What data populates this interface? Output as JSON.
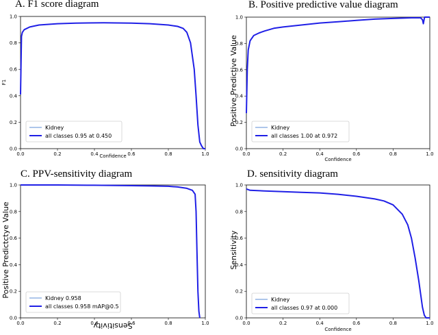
{
  "chart_data": [
    {
      "type": "line",
      "panel_title": "A. F1 score diagram",
      "xlabel": "Confidence",
      "ylabel": "F1",
      "xlim": [
        0,
        1
      ],
      "ylim": [
        0,
        1
      ],
      "xticks": [
        "0.0",
        "0.2",
        "0.4",
        "0.6",
        "0.8",
        "1.0"
      ],
      "yticks": [
        "0.0",
        "0.2",
        "0.4",
        "0.6",
        "0.8",
        "1.0"
      ],
      "legend_position": "lower-left",
      "series": [
        {
          "name": "Kidney",
          "color": "#5b8ed6",
          "width": 1,
          "x": [
            0.0,
            0.005,
            0.01,
            0.02,
            0.05,
            0.1,
            0.2,
            0.3,
            0.45,
            0.6,
            0.7,
            0.8,
            0.85,
            0.88,
            0.9,
            0.92,
            0.94,
            0.95,
            0.96,
            0.97,
            0.98,
            0.99,
            1.0
          ],
          "y": [
            0.41,
            0.85,
            0.88,
            0.9,
            0.92,
            0.935,
            0.945,
            0.95,
            0.952,
            0.95,
            0.945,
            0.935,
            0.925,
            0.91,
            0.88,
            0.8,
            0.6,
            0.4,
            0.18,
            0.05,
            0.02,
            0.0,
            0.0
          ]
        },
        {
          "name": "all classes 0.95 at 0.450",
          "color": "#1f1fe6",
          "width": 2,
          "x": [
            0.0,
            0.005,
            0.01,
            0.02,
            0.05,
            0.1,
            0.2,
            0.3,
            0.45,
            0.6,
            0.7,
            0.8,
            0.85,
            0.88,
            0.9,
            0.92,
            0.94,
            0.95,
            0.96,
            0.97,
            0.98,
            0.99,
            1.0
          ],
          "y": [
            0.41,
            0.85,
            0.88,
            0.9,
            0.92,
            0.935,
            0.945,
            0.95,
            0.952,
            0.95,
            0.945,
            0.935,
            0.925,
            0.91,
            0.88,
            0.8,
            0.6,
            0.4,
            0.18,
            0.05,
            0.02,
            0.0,
            0.0
          ]
        }
      ]
    },
    {
      "type": "line",
      "panel_title": "B. Positive predictive value diagram",
      "xlabel": "Confidence",
      "ylabel": "Positive Predictive Value",
      "xlim": [
        0,
        1
      ],
      "ylim": [
        0,
        1
      ],
      "xticks": [
        "0.0",
        "0.2",
        "0.4",
        "0.6",
        "0.8",
        "1.0"
      ],
      "yticks": [
        "0.0",
        "0.2",
        "0.4",
        "0.6",
        "0.8",
        "1.0"
      ],
      "legend_position": "lower-left",
      "series": [
        {
          "name": "Kidney",
          "color": "#5b8ed6",
          "width": 1,
          "x": [
            0.0,
            0.005,
            0.01,
            0.02,
            0.04,
            0.07,
            0.1,
            0.15,
            0.2,
            0.3,
            0.4,
            0.5,
            0.6,
            0.7,
            0.8,
            0.9,
            0.95,
            0.96,
            0.965,
            0.97,
            0.972,
            1.0
          ],
          "y": [
            0.27,
            0.6,
            0.75,
            0.82,
            0.86,
            0.88,
            0.895,
            0.915,
            0.925,
            0.94,
            0.955,
            0.965,
            0.975,
            0.985,
            0.99,
            0.995,
            0.995,
            0.98,
            0.95,
            0.99,
            1.0,
            1.0
          ]
        },
        {
          "name": "all classes 1.00 at 0.972",
          "color": "#1f1fe6",
          "width": 2,
          "x": [
            0.0,
            0.005,
            0.01,
            0.02,
            0.04,
            0.07,
            0.1,
            0.15,
            0.2,
            0.3,
            0.4,
            0.5,
            0.6,
            0.7,
            0.8,
            0.9,
            0.95,
            0.96,
            0.965,
            0.97,
            0.972,
            1.0
          ],
          "y": [
            0.27,
            0.6,
            0.75,
            0.82,
            0.86,
            0.88,
            0.895,
            0.915,
            0.925,
            0.94,
            0.955,
            0.965,
            0.975,
            0.985,
            0.99,
            0.995,
            0.995,
            0.98,
            0.95,
            0.99,
            1.0,
            1.0
          ]
        }
      ]
    },
    {
      "type": "line",
      "panel_title": "C. PPV-sensitivity diagram",
      "xlabel": "Sensitivity",
      "xlabel_rotated": true,
      "ylabel": "Positive Predictctye Value",
      "xlim": [
        0,
        1
      ],
      "ylim": [
        0,
        1
      ],
      "xticks": [
        "0.0",
        "0.2",
        "0.4",
        "0.6",
        "0.8",
        "1.0"
      ],
      "yticks": [
        "0.0",
        "0.2",
        "0.4",
        "0.6",
        "0.8",
        "1.0"
      ],
      "legend_position": "lower-left",
      "series": [
        {
          "name": "Kidney 0.958",
          "color": "#5b8ed6",
          "width": 1,
          "x": [
            0.0,
            0.2,
            0.4,
            0.6,
            0.7,
            0.8,
            0.85,
            0.9,
            0.93,
            0.945,
            0.95,
            0.955,
            0.96,
            0.965,
            0.97
          ],
          "y": [
            1.0,
            1.0,
            0.998,
            0.995,
            0.993,
            0.99,
            0.985,
            0.975,
            0.96,
            0.93,
            0.8,
            0.5,
            0.2,
            0.05,
            0.0
          ]
        },
        {
          "name": "all classes 0.958 mAP@0.5",
          "color": "#1f1fe6",
          "width": 2,
          "x": [
            0.0,
            0.2,
            0.4,
            0.6,
            0.7,
            0.8,
            0.85,
            0.9,
            0.93,
            0.945,
            0.95,
            0.955,
            0.96,
            0.965,
            0.97
          ],
          "y": [
            1.0,
            1.0,
            0.998,
            0.995,
            0.993,
            0.99,
            0.985,
            0.975,
            0.96,
            0.93,
            0.8,
            0.5,
            0.2,
            0.05,
            0.0
          ]
        }
      ]
    },
    {
      "type": "line",
      "panel_title": "D. sensitivity diagram",
      "xlabel": "Confidence",
      "ylabel": "Sensitivity",
      "xlim": [
        0,
        1
      ],
      "ylim": [
        0,
        1
      ],
      "xticks": [
        "0.0",
        "0.2",
        "0.4",
        "0.6",
        "0.8",
        "1.0"
      ],
      "yticks": [
        "0.0",
        "0.2",
        "0.4",
        "0.6",
        "0.8",
        "1.0"
      ],
      "legend_position": "lower-left",
      "series": [
        {
          "name": "Kidney",
          "color": "#5b8ed6",
          "width": 1,
          "x": [
            0.0,
            0.02,
            0.1,
            0.2,
            0.3,
            0.4,
            0.5,
            0.6,
            0.7,
            0.75,
            0.8,
            0.85,
            0.88,
            0.9,
            0.92,
            0.94,
            0.95,
            0.96,
            0.97,
            0.98,
            1.0
          ],
          "y": [
            0.97,
            0.96,
            0.955,
            0.95,
            0.945,
            0.94,
            0.93,
            0.915,
            0.895,
            0.88,
            0.85,
            0.78,
            0.7,
            0.6,
            0.45,
            0.28,
            0.18,
            0.08,
            0.02,
            0.0,
            0.0
          ]
        },
        {
          "name": "all classes 0.97 at 0.000",
          "color": "#1f1fe6",
          "width": 2,
          "x": [
            0.0,
            0.02,
            0.1,
            0.2,
            0.3,
            0.4,
            0.5,
            0.6,
            0.7,
            0.75,
            0.8,
            0.85,
            0.88,
            0.9,
            0.92,
            0.94,
            0.95,
            0.96,
            0.97,
            0.98,
            1.0
          ],
          "y": [
            0.97,
            0.96,
            0.955,
            0.95,
            0.945,
            0.94,
            0.93,
            0.915,
            0.895,
            0.88,
            0.85,
            0.78,
            0.7,
            0.6,
            0.45,
            0.28,
            0.18,
            0.08,
            0.02,
            0.0,
            0.0
          ]
        }
      ]
    }
  ]
}
